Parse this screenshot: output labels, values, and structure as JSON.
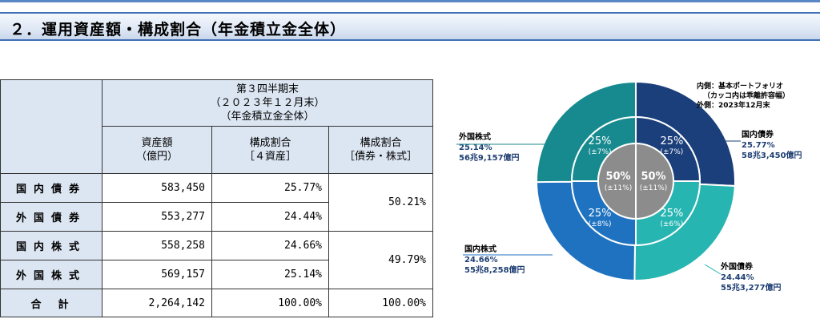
{
  "section_title": "２．運用資産額・構成割合（年金積立金全体）",
  "table": {
    "period_header": "第３四半期末\n（２０２３年１２月末）\n（年金積立金全体）",
    "col_headers": [
      "資産額\n（億円）",
      "構成割合\n［４資産］",
      "構成割合\n［債券・株式］"
    ],
    "rows": [
      {
        "label": "国内債券",
        "amount": "583,450",
        "ratio": "25.77%"
      },
      {
        "label": "外国債券",
        "amount": "553,277",
        "ratio": "24.44%"
      },
      {
        "label": "国内株式",
        "amount": "558,258",
        "ratio": "24.66%"
      },
      {
        "label": "外国株式",
        "amount": "569,157",
        "ratio": "25.14%"
      }
    ],
    "bond_ratio": "50.21%",
    "equity_ratio": "49.79%",
    "total": {
      "label": "合　計",
      "amount": "2,264,142",
      "ratio": "100.00%",
      "ratio2": "100.00%"
    }
  },
  "legend": {
    "inner": "内側：基本ポートフォリオ",
    "inner_note": "（カッコ内は乖離許容幅）",
    "outer": "外側：2023年12月末"
  },
  "chart_data": {
    "type": "pie",
    "outer_ring": [
      {
        "name": "国内債券",
        "percent": 25.77,
        "pct_label": "25.77%",
        "amount": "58兆3,450億円",
        "color": "#1b3f7a"
      },
      {
        "name": "外国債券",
        "percent": 24.44,
        "pct_label": "24.44%",
        "amount": "55兆3,277億円",
        "color": "#27b5b2"
      },
      {
        "name": "国内株式",
        "percent": 24.66,
        "pct_label": "24.66%",
        "amount": "55兆8,258億円",
        "color": "#1f72c0"
      },
      {
        "name": "外国株式",
        "percent": 25.14,
        "pct_label": "25.14%",
        "amount": "56兆9,157億円",
        "color": "#168a8e"
      }
    ],
    "middle_ring": [
      {
        "percent": 25,
        "label": "25%",
        "range": "(±7%)",
        "color": "#1b3f7a"
      },
      {
        "percent": 25,
        "label": "25%",
        "range": "(±6%)",
        "color": "#27b5b2"
      },
      {
        "percent": 25,
        "label": "25%",
        "range": "(±8%)",
        "color": "#1f72c0"
      },
      {
        "percent": 25,
        "label": "25%",
        "range": "(±7%)",
        "color": "#168a8e"
      }
    ],
    "inner_ring": [
      {
        "percent": 50,
        "label": "50%",
        "range": "(±11%)",
        "color": "#8c8c8c"
      },
      {
        "percent": 50,
        "label": "50%",
        "range": "(±11%)",
        "color": "#8c8c8c"
      }
    ]
  }
}
